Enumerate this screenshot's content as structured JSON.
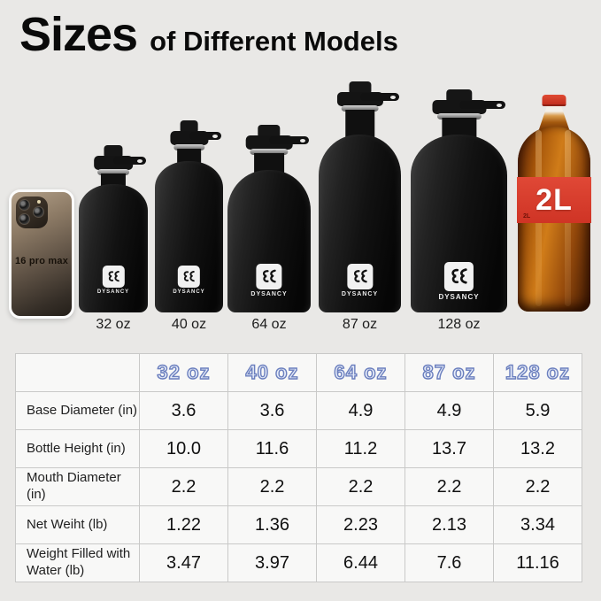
{
  "title": {
    "main": "Sizes",
    "suffix": "of Different Models"
  },
  "phone": {
    "label": "16 pro max"
  },
  "brand": "DYSANCY",
  "bottles": [
    {
      "label": "32 oz"
    },
    {
      "label": "40 oz"
    },
    {
      "label": "64 oz"
    },
    {
      "label": "87 oz"
    },
    {
      "label": "128 oz"
    }
  ],
  "cola": {
    "label": "2L",
    "label_small": "2L"
  },
  "table": {
    "headers": [
      "32 oz",
      "40 oz",
      "64 oz",
      "87 oz",
      "128 oz"
    ],
    "rows": [
      {
        "label": "Base Diameter (in)",
        "values": [
          "3.6",
          "3.6",
          "4.9",
          "4.9",
          "5.9"
        ]
      },
      {
        "label": "Bottle Height (in)",
        "values": [
          "10.0",
          "11.6",
          "11.2",
          "13.7",
          "13.2"
        ]
      },
      {
        "label": "Mouth Diameter (in)",
        "values": [
          "2.2",
          "2.2",
          "2.2",
          "2.2",
          "2.2"
        ]
      },
      {
        "label": "Net Weiht (lb)",
        "values": [
          "1.22",
          "1.36",
          "2.23",
          "2.13",
          "3.34"
        ]
      },
      {
        "label": "Weight Filled with Water (lb)",
        "values": [
          "3.47",
          "3.97",
          "6.44",
          "7.6",
          "11.16"
        ]
      }
    ]
  },
  "colors": {
    "background": "#e9e8e6",
    "header_outline_blue": "#6b7fbe",
    "header_fill_blue": "#e7edf9",
    "cola_red": "#d8372a",
    "bottle_black": "#0c0c0c"
  }
}
